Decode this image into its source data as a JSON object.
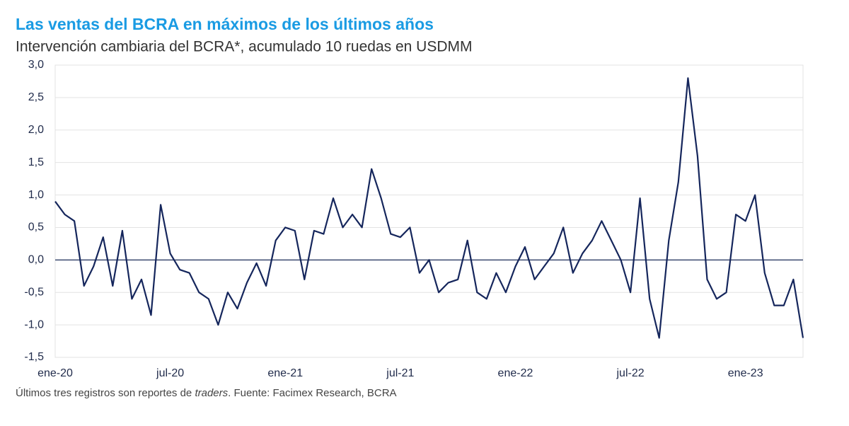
{
  "chart_data": {
    "type": "line",
    "title": "Las ventas del BCRA en máximos de los últimos años",
    "subtitle": "Intervención cambiaria del BCRA*, acumulado 10 ruedas en USDMM",
    "note": [
      "Últimos tres registros son reportes de ",
      "traders",
      ". Fuente: Facimex Research, BCRA"
    ],
    "categories": [
      "ene-20",
      null,
      null,
      null,
      null,
      null,
      null,
      null,
      null,
      null,
      null,
      null,
      "jul-20",
      null,
      null,
      null,
      null,
      null,
      null,
      null,
      null,
      null,
      null,
      null,
      "ene-21",
      null,
      null,
      null,
      null,
      null,
      null,
      null,
      null,
      null,
      null,
      null,
      "jul-21",
      null,
      null,
      null,
      null,
      null,
      null,
      null,
      null,
      null,
      null,
      null,
      "ene-22",
      null,
      null,
      null,
      null,
      null,
      null,
      null,
      null,
      null,
      null,
      null,
      "jul-22",
      null,
      null,
      null,
      null,
      null,
      null,
      null,
      null,
      null,
      null,
      null,
      "ene-23",
      null,
      null,
      null,
      null,
      null,
      null
    ],
    "series": [
      {
        "name": "Intervención cambiaria",
        "color": "#15265c",
        "values": [
          0.9,
          0.7,
          0.6,
          -0.4,
          -0.1,
          0.35,
          -0.4,
          0.45,
          -0.6,
          -0.3,
          -0.85,
          0.85,
          0.1,
          -0.15,
          -0.2,
          -0.5,
          -0.6,
          -1.0,
          -0.5,
          -0.75,
          -0.35,
          -0.05,
          -0.4,
          0.3,
          0.5,
          0.45,
          -0.3,
          0.45,
          0.4,
          0.95,
          0.5,
          0.7,
          0.5,
          1.4,
          0.95,
          0.4,
          0.35,
          0.5,
          -0.2,
          0.0,
          -0.5,
          -0.35,
          -0.3,
          0.3,
          -0.5,
          -0.6,
          -0.2,
          -0.5,
          -0.1,
          0.2,
          -0.3,
          -0.1,
          0.1,
          0.5,
          -0.2,
          0.1,
          0.3,
          0.6,
          0.3,
          0.0,
          -0.5,
          0.95,
          -0.6,
          -1.2,
          0.3,
          1.2,
          2.8,
          1.6,
          -0.3,
          -0.6,
          -0.5,
          0.7,
          0.6,
          1.0,
          -0.2,
          -0.7,
          -0.7,
          -0.3,
          -1.2
        ]
      }
    ],
    "ylim": [
      -1.5,
      3.0
    ],
    "yticks": [
      {
        "value": -1.5,
        "label": "-1,5"
      },
      {
        "value": -1.0,
        "label": "-1,0"
      },
      {
        "value": -0.5,
        "label": "-0,5"
      },
      {
        "value": 0,
        "label": "0,0"
      },
      {
        "value": 0.5,
        "label": "0,5"
      },
      {
        "value": 1.0,
        "label": "1,0"
      },
      {
        "value": 1.5,
        "label": "1,5"
      },
      {
        "value": 2.0,
        "label": "2,0"
      },
      {
        "value": 2.5,
        "label": "2,5"
      },
      {
        "value": 3.0,
        "label": "3,0"
      }
    ],
    "grid": true
  }
}
